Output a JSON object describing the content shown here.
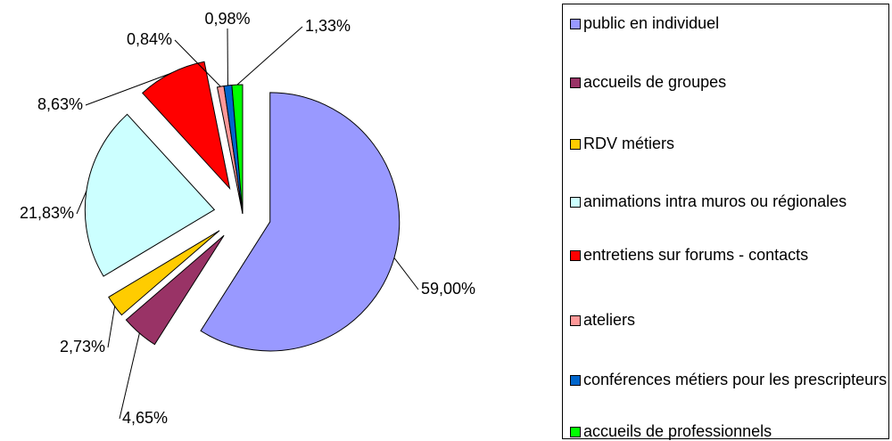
{
  "chart_data": {
    "type": "pie",
    "categories": [
      "public en individuel",
      "accueils de groupes",
      "RDV métiers",
      "animations intra muros ou régionales",
      "entretiens sur forums - contacts",
      "ateliers",
      "conférences métiers pour les prescripteurs",
      "accueils de professionnels"
    ],
    "values": [
      59.0,
      4.65,
      2.73,
      21.83,
      8.63,
      0.84,
      0.98,
      1.33
    ],
    "value_labels": [
      "59,00%",
      "4,65%",
      "2,73%",
      "21,83%",
      "8,63%",
      "0,84%",
      "0,98%",
      "1,33%"
    ],
    "colors": [
      "#9999ff",
      "#993366",
      "#ffcc00",
      "#ccffff",
      "#ff0000",
      "#ff9999",
      "#0066cc",
      "#00ff00"
    ],
    "legend": "right"
  }
}
